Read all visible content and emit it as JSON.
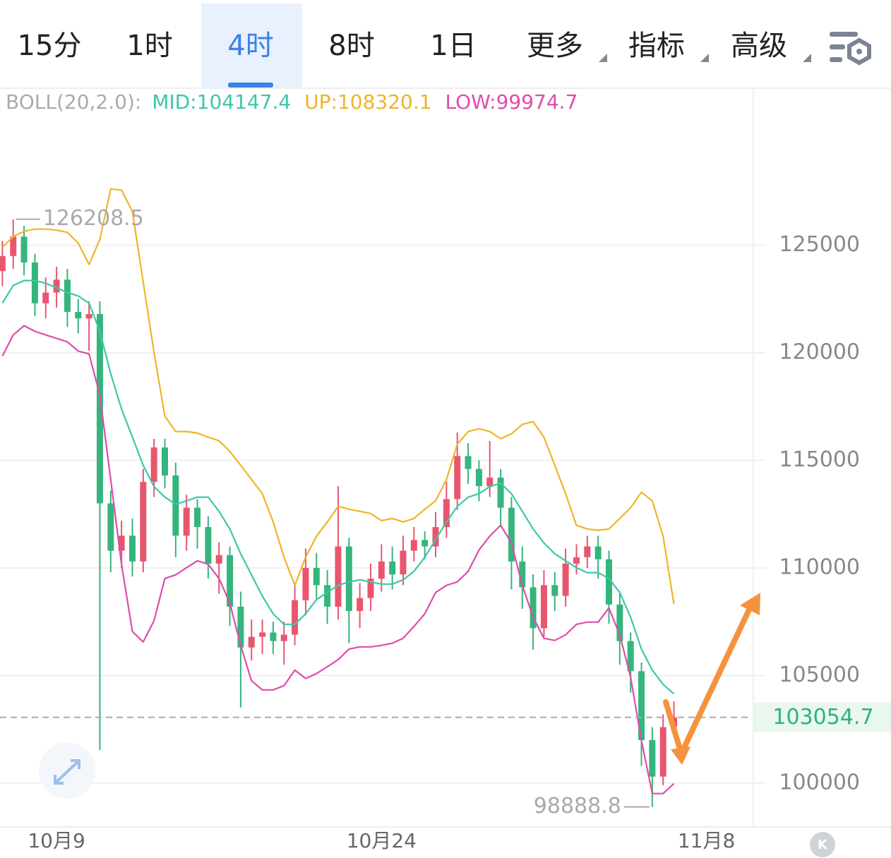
{
  "tabs": [
    "15分",
    "1时",
    "4时",
    "8时",
    "1日",
    "更多",
    "指标",
    "高级"
  ],
  "active_tab": 2,
  "k_button": "K",
  "chart_data": {
    "type": "candlestick",
    "boll_label": "BOLL(20,2.0):",
    "x": [
      -2.5,
      -2,
      -1.5,
      -1,
      -0.5,
      0,
      0.5,
      1,
      1.5,
      2,
      2.5,
      3,
      3.5,
      4,
      4.5,
      5,
      5.5,
      6,
      6.5,
      7,
      7.5,
      8,
      8.5,
      9,
      9.5,
      10,
      10.5,
      11,
      11.5,
      12,
      12.5,
      13,
      13.5,
      14,
      14.5,
      15,
      15.5,
      16,
      16.5,
      17,
      17.5,
      18,
      18.5,
      19,
      19.5,
      20,
      20.5,
      21,
      21.5,
      22,
      22.5,
      23,
      23.5,
      24,
      24.5,
      25,
      25.5,
      26,
      26.5,
      27,
      27.5,
      28,
      28.5
    ],
    "open": [
      123800,
      124500,
      125400,
      124200,
      122300,
      122800,
      123400,
      121900,
      121600,
      121800,
      113000,
      110800,
      111500,
      110300,
      114000,
      115600,
      114300,
      111500,
      112800,
      111900,
      110200,
      110600,
      108200,
      106300,
      106800,
      107000,
      106600,
      106900,
      108500,
      110000,
      109200,
      108200,
      111000,
      108000,
      108600,
      109500,
      110300,
      109700,
      110800,
      111300,
      111000,
      111900,
      113200,
      115200,
      114600,
      113800,
      114200,
      112800,
      110300,
      109100,
      107200,
      109200,
      108700,
      110200,
      110500,
      111000,
      110400,
      108300,
      106600,
      105200,
      102000,
      100300,
      102600
    ],
    "high": [
      125200,
      126208.5,
      125900,
      124600,
      123500,
      124000,
      123900,
      122500,
      122400,
      122400,
      113600,
      112200,
      112300,
      114600,
      116000,
      116000,
      114900,
      113400,
      113200,
      112400,
      111200,
      111000,
      108900,
      107600,
      107600,
      107500,
      107500,
      109200,
      110900,
      110700,
      109900,
      113800,
      111400,
      109300,
      110200,
      111100,
      111000,
      111500,
      111900,
      111700,
      112600,
      114000,
      116300,
      115800,
      115000,
      115900,
      114600,
      113300,
      111000,
      109700,
      109900,
      109800,
      110900,
      111100,
      111500,
      111500,
      110800,
      108800,
      107000,
      105600,
      102600,
      103200,
      103800
    ],
    "low": [
      123100,
      123900,
      123600,
      121700,
      121600,
      122100,
      121200,
      120900,
      120100,
      101540,
      109800,
      110000,
      109600,
      109800,
      113300,
      113700,
      110500,
      110800,
      110900,
      109500,
      108800,
      107300,
      103510,
      105700,
      106000,
      106000,
      105500,
      106400,
      107800,
      108500,
      107400,
      107600,
      106500,
      107200,
      108000,
      108900,
      109000,
      109200,
      110300,
      110400,
      110500,
      111400,
      112700,
      113900,
      113100,
      113300,
      111900,
      109000,
      108100,
      106200,
      106800,
      108000,
      108200,
      109700,
      110000,
      109500,
      107400,
      105500,
      104200,
      100800,
      98888.8,
      99900,
      102100
    ],
    "close": [
      124500,
      125400,
      124200,
      122300,
      122800,
      123400,
      121900,
      121600,
      121800,
      113000,
      110800,
      111500,
      110300,
      114000,
      115600,
      114300,
      111500,
      112800,
      111900,
      110200,
      110600,
      108200,
      106300,
      106800,
      107000,
      106600,
      106900,
      108500,
      110000,
      109200,
      108200,
      111000,
      108000,
      108600,
      109500,
      110300,
      109700,
      110800,
      111300,
      111000,
      111900,
      113200,
      115200,
      114600,
      113800,
      114200,
      112800,
      110300,
      109100,
      107200,
      109200,
      108700,
      110200,
      110500,
      111000,
      110400,
      108300,
      106600,
      105200,
      102000,
      100300,
      102600,
      103054.7
    ],
    "up_color": "#e8566e",
    "down_color": "#35b57c",
    "series": [
      {
        "name": "MID:",
        "color": "#3cc8a8",
        "values": [
          122310,
          123130,
          123360,
          123360,
          123230,
          123030,
          122800,
          122640,
          122310,
          121000,
          119030,
          117390,
          116080,
          114770,
          113780,
          113290,
          112960,
          113120,
          113290,
          113290,
          112630,
          111810,
          110660,
          109680,
          108690,
          107870,
          107380,
          107380,
          107870,
          108530,
          108860,
          109190,
          109350,
          109450,
          109350,
          109250,
          109250,
          109450,
          109840,
          110500,
          111320,
          112140,
          112860,
          113290,
          113450,
          113780,
          113940,
          113450,
          112630,
          111810,
          111160,
          110660,
          110330,
          110010,
          109780,
          109780,
          109510,
          108860,
          107710,
          106230,
          105250,
          104590,
          104147.4
        ]
      },
      {
        "name": "UP:",
        "color": "#f0b429",
        "values": [
          124900,
          125400,
          125650,
          125750,
          125750,
          125700,
          125600,
          125100,
          124110,
          125260,
          127620,
          127560,
          126570,
          123290,
          120010,
          117060,
          116340,
          116340,
          116270,
          116080,
          115910,
          115420,
          114770,
          114110,
          113450,
          112140,
          110500,
          109190,
          110500,
          111480,
          112140,
          112860,
          112730,
          112630,
          112530,
          112200,
          112300,
          112140,
          112300,
          112730,
          113120,
          114110,
          115750,
          116340,
          116470,
          116340,
          116010,
          116240,
          116670,
          116800,
          116080,
          114770,
          113450,
          111980,
          111810,
          111750,
          111810,
          112300,
          112800,
          113520,
          113120,
          111480,
          108320.1
        ]
      },
      {
        "name": "LOW:",
        "color": "#e04cab",
        "values": [
          119850,
          120830,
          121260,
          121000,
          120830,
          120670,
          120510,
          120080,
          119950,
          118040,
          114110,
          110170,
          107050,
          106560,
          107550,
          109510,
          109680,
          110010,
          110330,
          110170,
          109510,
          108370,
          106400,
          104760,
          104330,
          104330,
          104530,
          105250,
          104860,
          105090,
          105410,
          105740,
          106230,
          106330,
          106330,
          106400,
          106500,
          106730,
          107280,
          107870,
          108860,
          109190,
          109350,
          109840,
          110830,
          111480,
          111980,
          111160,
          109190,
          107710,
          106730,
          106630,
          106890,
          107380,
          107480,
          107480,
          108140,
          106890,
          104920,
          101970,
          99510,
          99510,
          99974.7
        ]
      }
    ],
    "xlim": [
      -2.61,
      32.1
    ],
    "xticks": [
      {
        "value": 0,
        "label": "10月9"
      },
      {
        "value": 15,
        "label": "10月24"
      },
      {
        "value": 30,
        "label": "11月8"
      }
    ],
    "ylim": [
      97960,
      132300
    ],
    "yticks": [
      100000,
      105000,
      110000,
      115000,
      120000,
      125000
    ],
    "grid": true
  }
}
